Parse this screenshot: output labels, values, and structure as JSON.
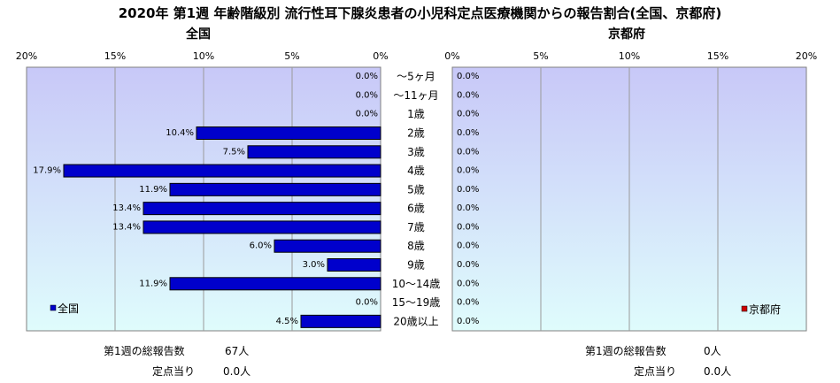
{
  "title": "2020年 第1週 年齢階級別 流行性耳下腺炎患者の小児科定点医療機関からの報告割合(全国、京都府)",
  "chart_data": [
    {
      "type": "bar",
      "orientation": "horizontal",
      "direction": "right-to-left",
      "subtitle": "全国",
      "xlim": [
        0,
        20
      ],
      "ticks": [
        "20%",
        "15%",
        "10%",
        "5%",
        "0%"
      ],
      "categories": [
        "～5ヶ月",
        "～11ヶ月",
        "1歳",
        "2歳",
        "3歳",
        "4歳",
        "5歳",
        "6歳",
        "7歳",
        "8歳",
        "9歳",
        "10～14歳",
        "15～19歳",
        "20歳以上"
      ],
      "series": [
        {
          "name": "全国",
          "color": "#0000cc",
          "values": [
            0.0,
            0.0,
            0.0,
            10.4,
            7.5,
            17.9,
            11.9,
            13.4,
            13.4,
            6.0,
            3.0,
            11.9,
            0.0,
            4.5
          ],
          "labels": [
            "0.0%",
            "0.0%",
            "0.0%",
            "10.4%",
            "7.5%",
            "17.9%",
            "11.9%",
            "13.4%",
            "13.4%",
            "6.0%",
            "3.0%",
            "11.9%",
            "0.0%",
            "4.5%"
          ]
        }
      ],
      "legend_position": "bottom-left"
    },
    {
      "type": "bar",
      "orientation": "horizontal",
      "direction": "left-to-right",
      "subtitle": "京都府",
      "xlim": [
        0,
        20
      ],
      "ticks": [
        "0%",
        "5%",
        "10%",
        "15%",
        "20%"
      ],
      "categories": [
        "～5ヶ月",
        "～11ヶ月",
        "1歳",
        "2歳",
        "3歳",
        "4歳",
        "5歳",
        "6歳",
        "7歳",
        "8歳",
        "9歳",
        "10～14歳",
        "15～19歳",
        "20歳以上"
      ],
      "series": [
        {
          "name": "京都府",
          "color": "#cc0000",
          "values": [
            0.0,
            0.0,
            0.0,
            0.0,
            0.0,
            0.0,
            0.0,
            0.0,
            0.0,
            0.0,
            0.0,
            0.0,
            0.0,
            0.0
          ],
          "labels": [
            "0.0%",
            "0.0%",
            "0.0%",
            "0.0%",
            "0.0%",
            "0.0%",
            "0.0%",
            "0.0%",
            "0.0%",
            "0.0%",
            "0.0%",
            "0.0%",
            "0.0%",
            "0.0%"
          ]
        }
      ],
      "legend_position": "bottom-right"
    }
  ],
  "stats": {
    "national": {
      "total_label": "第1週の総報告数",
      "total_value": "67人",
      "per_site_label": "定点当り",
      "per_site_value": "0.0人"
    },
    "kyoto": {
      "total_label": "第1週の総報告数",
      "total_value": "0人",
      "per_site_label": "定点当り",
      "per_site_value": "0.0人"
    }
  },
  "colors": {
    "plot_top": "#c8c8f8",
    "plot_bottom": "#dffcfc",
    "national_bar": "#0000cc",
    "kyoto_bar": "#cc0000"
  }
}
